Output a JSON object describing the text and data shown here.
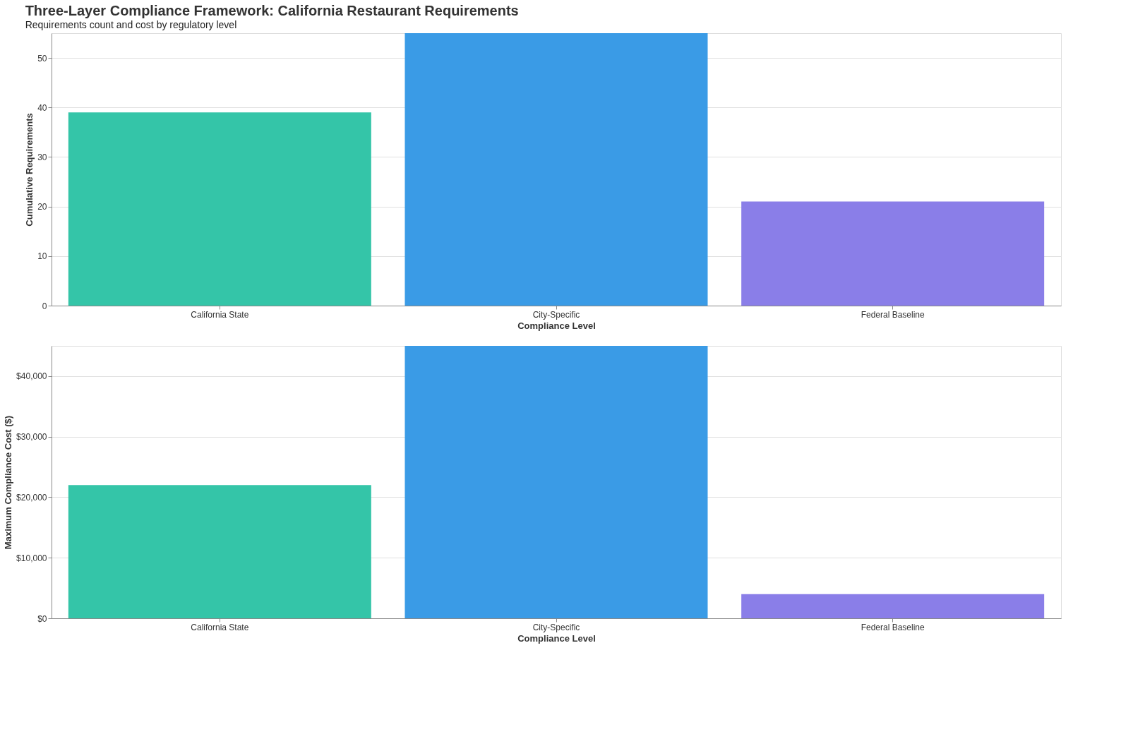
{
  "chart_data": [
    {
      "type": "bar",
      "title": "Three-Layer Compliance Framework: California Restaurant Requirements",
      "subtitle": "Requirements count and cost by regulatory level",
      "xlabel": "Compliance Level",
      "ylabel": "Cumulative Requirements",
      "categories": [
        "California State",
        "City-Specific",
        "Federal Baseline"
      ],
      "values": [
        39,
        55,
        21
      ],
      "colors": [
        "#34c5a8",
        "#3a9be6",
        "#8a7ee8"
      ],
      "ylim": [
        0,
        55
      ],
      "yticks": [
        0,
        10,
        20,
        30,
        40,
        50
      ],
      "grid": "y",
      "legend": false
    },
    {
      "type": "bar",
      "xlabel": "Compliance Level",
      "ylabel": "Maximum Compliance Cost ($)",
      "categories": [
        "California State",
        "City-Specific",
        "Federal Baseline"
      ],
      "values": [
        22000,
        45000,
        4000
      ],
      "colors": [
        "#34c5a8",
        "#3a9be6",
        "#8a7ee8"
      ],
      "ylim": [
        0,
        45000
      ],
      "yticks": [
        {
          "value": 0,
          "label": "$0"
        },
        {
          "value": 10000,
          "label": "$10,000"
        },
        {
          "value": 20000,
          "label": "$20,000"
        },
        {
          "value": 30000,
          "label": "$30,000"
        },
        {
          "value": 40000,
          "label": "$40,000"
        }
      ],
      "grid": "y",
      "legend": false
    }
  ]
}
